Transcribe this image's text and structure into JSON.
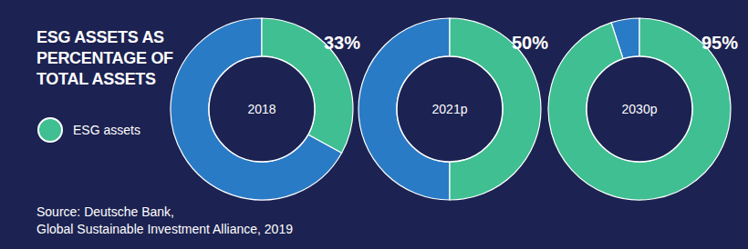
{
  "chart_data": {
    "type": "donut",
    "title": "ESG ASSETS AS PERCENTAGE OF TOTAL ASSETS",
    "categories": [
      "2018",
      "2021p",
      "2030p"
    ],
    "series": [
      {
        "name": "ESG assets",
        "color": "#3fbf92",
        "values": [
          33,
          50,
          95
        ],
        "value_labels": [
          "33%",
          "50%",
          "95%"
        ]
      }
    ],
    "color": "#2a7bc6",
    "ylim": [
      0,
      100
    ],
    "data_labels": true,
    "source": [
      "Source: Deutsche Bank,",
      "Global Sustainable Investment Alliance, 2019"
    ]
  }
}
